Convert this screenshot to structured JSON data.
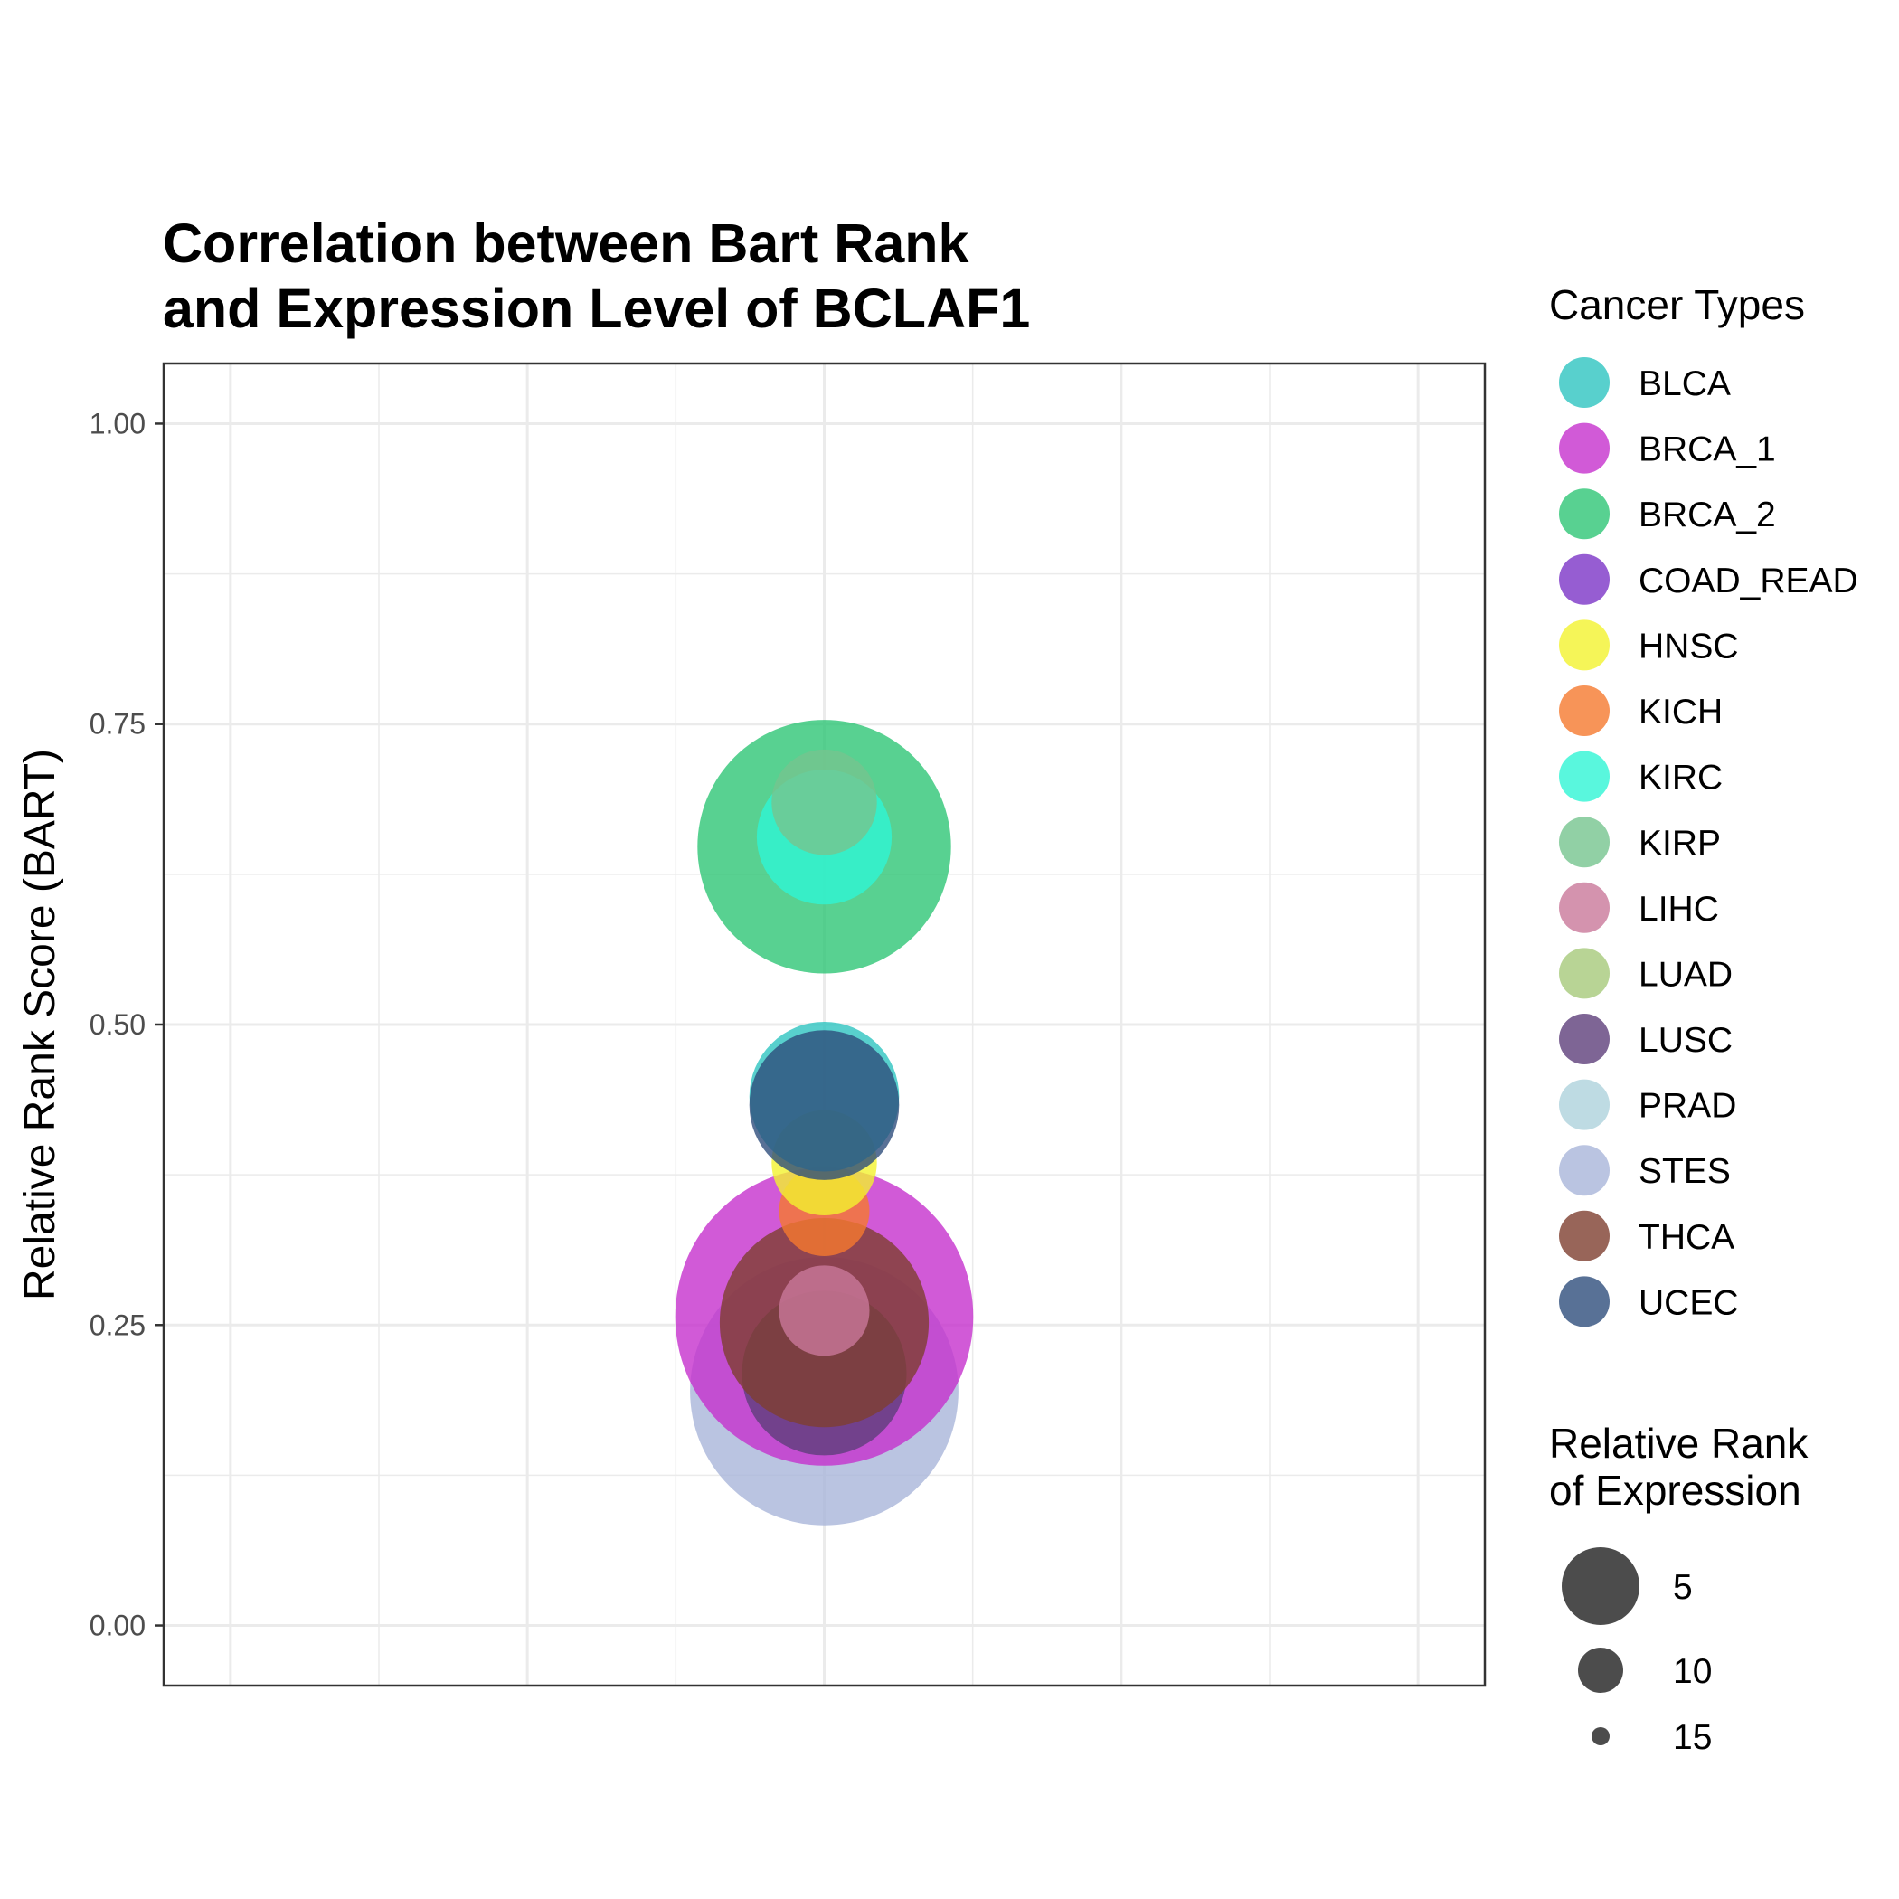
{
  "chart_data": {
    "type": "scatter",
    "title_lines": [
      "Correlation between Bart Rank",
      "and Expression Level of BCLAF1"
    ],
    "xlabel": "",
    "ylabel": "Relative Rank Score (BART)",
    "ylim": [
      -0.05,
      1.05
    ],
    "yticks": [
      {
        "value": 0.0,
        "label": "0.00"
      },
      {
        "value": 0.25,
        "label": "0.25"
      },
      {
        "value": 0.5,
        "label": "0.50"
      },
      {
        "value": 0.75,
        "label": "0.75"
      },
      {
        "value": 1.0,
        "label": "1.00"
      }
    ],
    "grid": true,
    "legend_placement": "right",
    "color_legend": {
      "title": "Cancer Types",
      "items": [
        {
          "name": "BLCA",
          "color": "#2ec4c0"
        },
        {
          "name": "BRCA_1",
          "color": "#c531cd"
        },
        {
          "name": "BRCA_2",
          "color": "#2ec675"
        },
        {
          "name": "COAD_READ",
          "color": "#7c35c7"
        },
        {
          "name": "HNSC",
          "color": "#f2f22e"
        },
        {
          "name": "KICH",
          "color": "#f5792e"
        },
        {
          "name": "KIRC",
          "color": "#2ff5d4"
        },
        {
          "name": "KIRP",
          "color": "#76c48f"
        },
        {
          "name": "LIHC",
          "color": "#c9789a"
        },
        {
          "name": "LUAD",
          "color": "#a6c97a"
        },
        {
          "name": "LUSC",
          "color": "#5e3e7a"
        },
        {
          "name": "PRAD",
          "color": "#aed2dc"
        },
        {
          "name": "STES",
          "color": "#a9b5da"
        },
        {
          "name": "THCA",
          "color": "#7e3e2f"
        },
        {
          "name": "UCEC",
          "color": "#2e4d7c"
        }
      ]
    },
    "size_legend": {
      "title_lines": [
        "Relative Rank",
        "of Expression"
      ],
      "items": [
        {
          "label": "5",
          "value": 5
        },
        {
          "label": "10",
          "value": 10
        },
        {
          "label": "15",
          "value": 15
        }
      ]
    },
    "points": [
      {
        "name": "STES",
        "y": 0.195,
        "expr_rank": 3
      },
      {
        "name": "BRCA_1",
        "y": 0.257,
        "expr_rank": 1
      },
      {
        "name": "LUSC",
        "y": 0.21,
        "expr_rank": 10
      },
      {
        "name": "THCA",
        "y": 0.252,
        "expr_rank": 7
      },
      {
        "name": "LIHC",
        "y": 0.262,
        "expr_rank": 15
      },
      {
        "name": "KICH",
        "y": 0.345,
        "expr_rank": 15
      },
      {
        "name": "HNSC",
        "y": 0.385,
        "expr_rank": 14
      },
      {
        "name": "BLCA",
        "y": 0.44,
        "expr_rank": 11
      },
      {
        "name": "UCEC",
        "y": 0.433,
        "expr_rank": 11
      },
      {
        "name": "BRCA_2",
        "y": 0.648,
        "expr_rank": 4
      },
      {
        "name": "KIRC",
        "y": 0.656,
        "expr_rank": 12
      },
      {
        "name": "KIRP",
        "y": 0.685,
        "expr_rank": 14
      }
    ]
  }
}
